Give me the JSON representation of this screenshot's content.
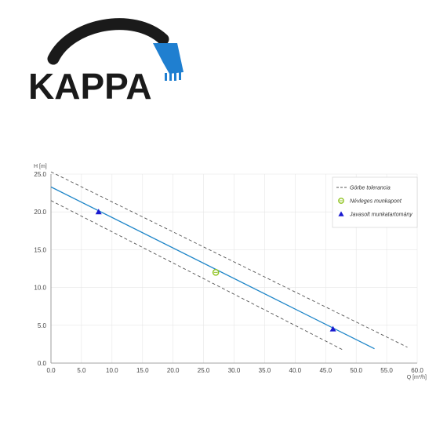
{
  "brand": {
    "name": "KAPPA",
    "colors": {
      "text": "#1a1a1a",
      "arc": "#1a1a1a",
      "bucket": "#1f7fd0"
    },
    "icon": "excavator-bucket-icon"
  },
  "chart_data": {
    "type": "line",
    "xlabel": "Q [m³/h]",
    "ylabel": "H [m]",
    "xlim": [
      0,
      60
    ],
    "ylim": [
      0,
      25
    ],
    "xticks": [
      0,
      5,
      10,
      15,
      20,
      25,
      30,
      35,
      40,
      45,
      50,
      55,
      60
    ],
    "yticks": [
      0,
      5,
      10,
      15,
      20,
      25
    ],
    "grid": true,
    "legend_position": "top-right",
    "legend": {
      "tolerance": "Görbe tolerancia",
      "nominal": "Névleges munkapont",
      "range": "Javasolt munkatartomány"
    },
    "curve": {
      "x": [
        0,
        53
      ],
      "y": [
        23.3,
        1.9
      ],
      "color": "#1f86c8"
    },
    "upper_tolerance": {
      "x": [
        0,
        58.4
      ],
      "y": [
        25.3,
        2.1
      ],
      "color": "#555555"
    },
    "lower_tolerance": {
      "x": [
        0,
        47.7
      ],
      "y": [
        21.5,
        1.8
      ],
      "color": "#555555"
    },
    "nominal_point": {
      "x": 27,
      "y": 12.0,
      "color": "#8fc31f"
    },
    "range_points": [
      {
        "x": 7.8,
        "y": 20.0
      },
      {
        "x": 46.2,
        "y": 4.5
      }
    ],
    "range_color": "#1a1ad0"
  }
}
